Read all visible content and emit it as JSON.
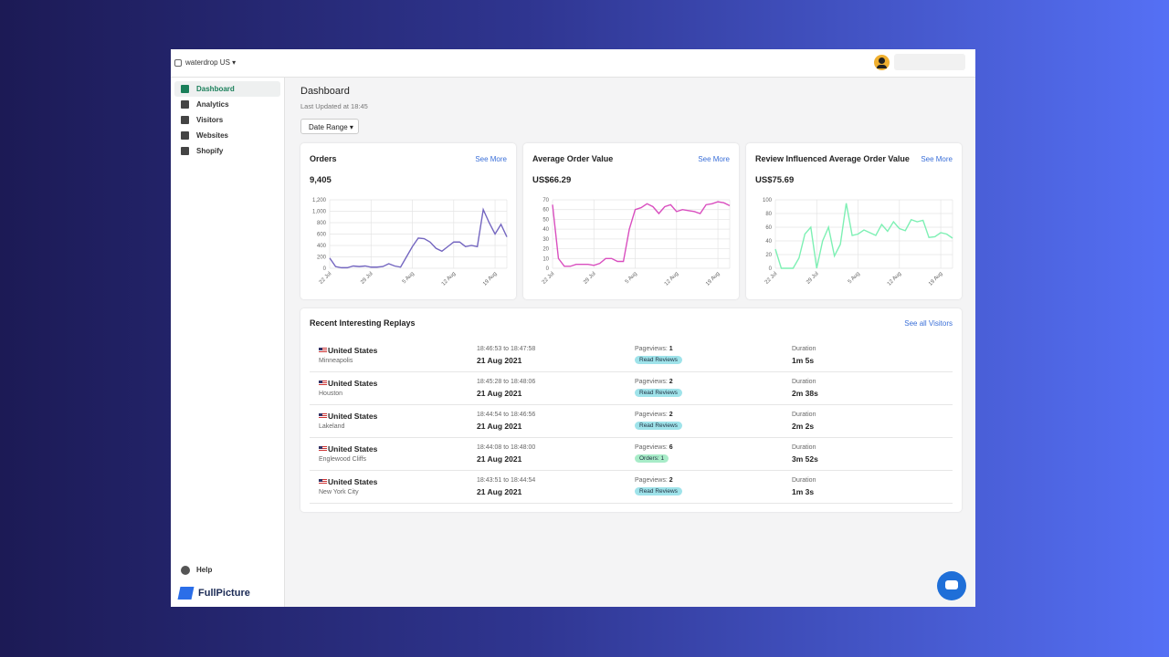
{
  "topbar": {
    "workspace": "waterdrop US"
  },
  "sidebar": {
    "items": [
      "Dashboard",
      "Analytics",
      "Visitors",
      "Websites",
      "Shopify"
    ],
    "help": "Help",
    "logo": "FullPicture"
  },
  "header": {
    "title": "Dashboard",
    "updated": "Last Updated at 18:45",
    "date_range": "Date Range"
  },
  "chart_data": [
    {
      "type": "line",
      "title": "Orders",
      "link": "See More",
      "summary": "9,405",
      "color": "#7466c0",
      "categories": [
        "22 Jul",
        null,
        null,
        null,
        null,
        null,
        null,
        "29 Jul",
        null,
        null,
        null,
        null,
        null,
        null,
        "5 Aug",
        null,
        null,
        null,
        null,
        null,
        null,
        "12 Aug",
        null,
        null,
        null,
        null,
        null,
        null,
        "19 Aug",
        null,
        null
      ],
      "values": [
        180,
        30,
        10,
        10,
        40,
        30,
        40,
        20,
        20,
        30,
        80,
        40,
        20,
        200,
        380,
        530,
        520,
        460,
        350,
        300,
        380,
        460,
        460,
        380,
        400,
        380,
        1030,
        800,
        600,
        770,
        550
      ],
      "ylim": [
        0,
        1200
      ],
      "yticks": [
        0,
        200,
        400,
        600,
        800,
        {
          "value": 1000,
          "label": "1,000"
        },
        {
          "value": 1200,
          "label": "1,200"
        }
      ],
      "grid": true
    },
    {
      "type": "line",
      "title": "Average Order Value",
      "link": "See More",
      "summary": "US$66.29",
      "color": "#d94fbf",
      "categories": [
        "22 Jul",
        null,
        null,
        null,
        null,
        null,
        null,
        "29 Jul",
        null,
        null,
        null,
        null,
        null,
        null,
        "5 Aug",
        null,
        null,
        null,
        null,
        null,
        null,
        "12 Aug",
        null,
        null,
        null,
        null,
        null,
        null,
        "19 Aug",
        null,
        null
      ],
      "values": [
        65,
        10,
        2,
        2,
        4,
        4,
        4,
        3,
        5,
        10,
        10,
        7,
        7,
        40,
        60,
        62,
        66,
        63,
        56,
        63,
        65,
        58,
        60,
        59,
        58,
        56,
        65,
        66,
        68,
        67,
        64
      ],
      "ylim": [
        0,
        70
      ],
      "yticks": [
        0,
        10,
        20,
        30,
        40,
        50,
        60,
        70
      ],
      "grid": true
    },
    {
      "type": "line",
      "title": "Review Influenced Average Order Value",
      "link": "See More",
      "summary": "US$75.69",
      "color": "#7ef0b4",
      "categories": [
        "22 Jul",
        null,
        null,
        null,
        null,
        null,
        null,
        "29 Jul",
        null,
        null,
        null,
        null,
        null,
        null,
        "5 Aug",
        null,
        null,
        null,
        null,
        null,
        null,
        "12 Aug",
        null,
        null,
        null,
        null,
        null,
        null,
        "19 Aug",
        null,
        null
      ],
      "values": [
        28,
        0,
        0,
        0,
        15,
        50,
        60,
        0,
        40,
        60,
        18,
        35,
        95,
        48,
        50,
        56,
        52,
        48,
        64,
        54,
        68,
        58,
        55,
        71,
        68,
        70,
        45,
        46,
        52,
        50,
        44
      ],
      "ylim": [
        0,
        100
      ],
      "yticks": [
        0,
        20,
        40,
        60,
        80,
        100
      ],
      "grid": true
    }
  ],
  "replays": {
    "title": "Recent Interesting Replays",
    "link": "See all Visitors",
    "pageviews_label": "Pageviews:",
    "duration_label": "Duration",
    "rows": [
      {
        "country": "United States",
        "city": "Minneapolis",
        "time": "18:46:53 to 18:47:58",
        "date": "21 Aug 2021",
        "pageviews": "1",
        "tag": "Read Reviews",
        "duration": "1m 5s"
      },
      {
        "country": "United States",
        "city": "Houston",
        "time": "18:45:28 to 18:48:06",
        "date": "21 Aug 2021",
        "pageviews": "2",
        "tag": "Read Reviews",
        "duration": "2m 38s"
      },
      {
        "country": "United States",
        "city": "Lakeland",
        "time": "18:44:54 to 18:46:56",
        "date": "21 Aug 2021",
        "pageviews": "2",
        "tag": "Read Reviews",
        "duration": "2m 2s"
      },
      {
        "country": "United States",
        "city": "Englewood Cliffs",
        "time": "18:44:08 to 18:48:00",
        "date": "21 Aug 2021",
        "pageviews": "6",
        "tag": "Orders: 1",
        "duration": "3m 52s"
      },
      {
        "country": "United States",
        "city": "New York City",
        "time": "18:43:51 to 18:44:54",
        "date": "21 Aug 2021",
        "pageviews": "2",
        "tag": "Read Reviews",
        "duration": "1m 3s"
      }
    ]
  }
}
